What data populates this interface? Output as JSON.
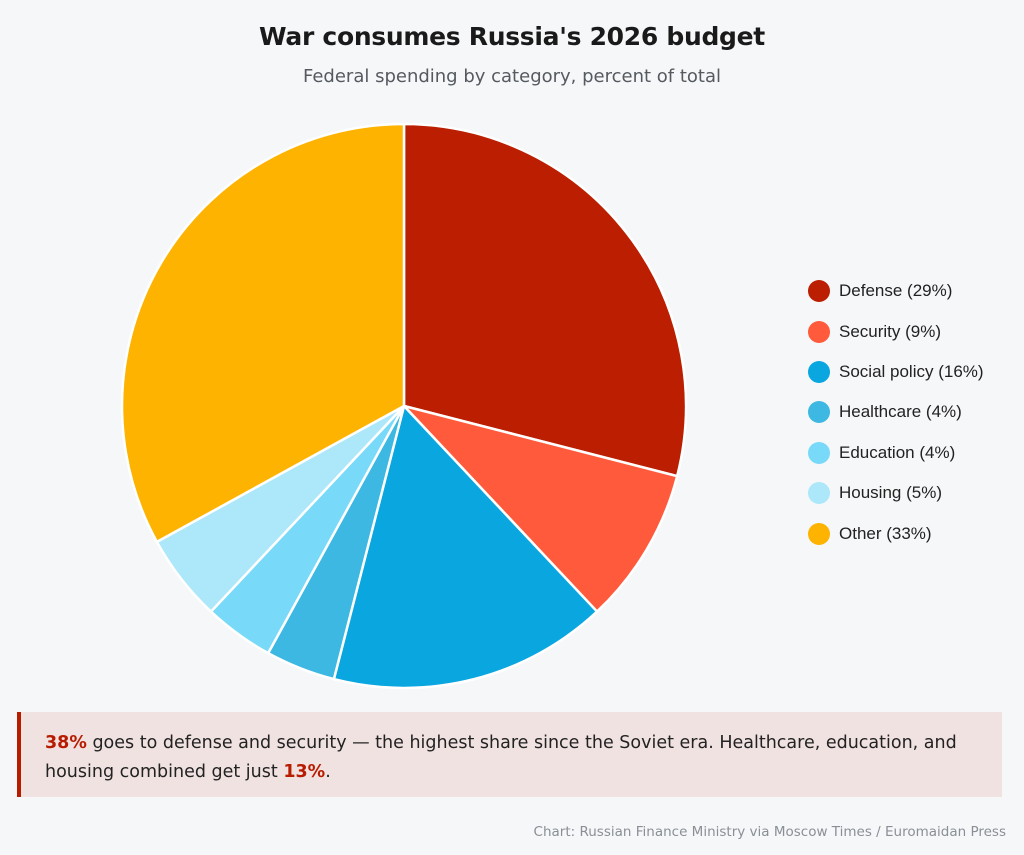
{
  "title": "War consumes Russia's 2026 budget",
  "subtitle": "Federal spending by category, percent of total",
  "chart_data": {
    "type": "pie",
    "title": "War consumes Russia's 2026 budget",
    "subtitle": "Federal spending by category, percent of total",
    "categories": [
      "Defense",
      "Security",
      "Social policy",
      "Healthcare",
      "Education",
      "Housing",
      "Other"
    ],
    "values": [
      29,
      9,
      16,
      4,
      4,
      5,
      33
    ],
    "colors": [
      "#bb1e00",
      "#ff5a3b",
      "#0aa6e0",
      "#3cb8e2",
      "#79d9f8",
      "#ace7fa",
      "#fdb300"
    ],
    "legend_labels": [
      "Defense (29%)",
      "Security (9%)",
      "Social policy (16%)",
      "Healthcare (4%)",
      "Education (4%)",
      "Housing (5%)",
      "Other (33%)"
    ],
    "legend_position": "right",
    "start_angle": "top, clockwise"
  },
  "callout": {
    "highlight_1": "38%",
    "text_1": " goes to defense and security — the highest share since the Soviet era. Healthcare, education, and housing combined get just ",
    "highlight_2": "13%",
    "text_2": "."
  },
  "source": "Chart: Russian Finance Ministry via Moscow Times / Euromaidan Press"
}
